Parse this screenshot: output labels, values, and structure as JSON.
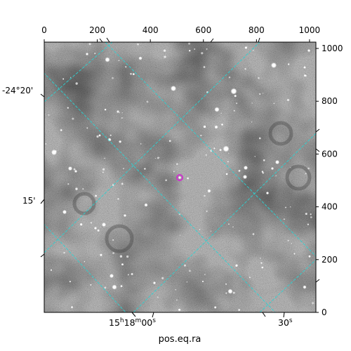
{
  "figure": {
    "top_axis_ticks": [
      "0",
      "200",
      "400",
      "600",
      "800",
      "1000"
    ],
    "top_axis_values": [
      0,
      200,
      400,
      600,
      800,
      1000
    ],
    "right_axis_ticks": [
      "1000",
      "800",
      "600",
      "400",
      "200",
      "0"
    ],
    "right_axis_values": [
      1000,
      800,
      600,
      400,
      200,
      0
    ],
    "pixel_range": [
      0,
      1024
    ],
    "dec_labels": [
      {
        "text": "-24°20'"
      },
      {
        "text": "15'"
      }
    ],
    "ra_labels": [
      {
        "hms": "15",
        "h": "h",
        "mid": "18",
        "m": "m",
        "sec": "00",
        "s": "s"
      },
      {
        "hms": "",
        "h": "",
        "mid": "",
        "m": "",
        "sec": "30",
        "s": "s"
      }
    ],
    "xlabel": "pos.eq.ra",
    "grid_color": "#2ad4d4",
    "marker_color": "#cc33cc",
    "image_style": "grayscale star field"
  }
}
